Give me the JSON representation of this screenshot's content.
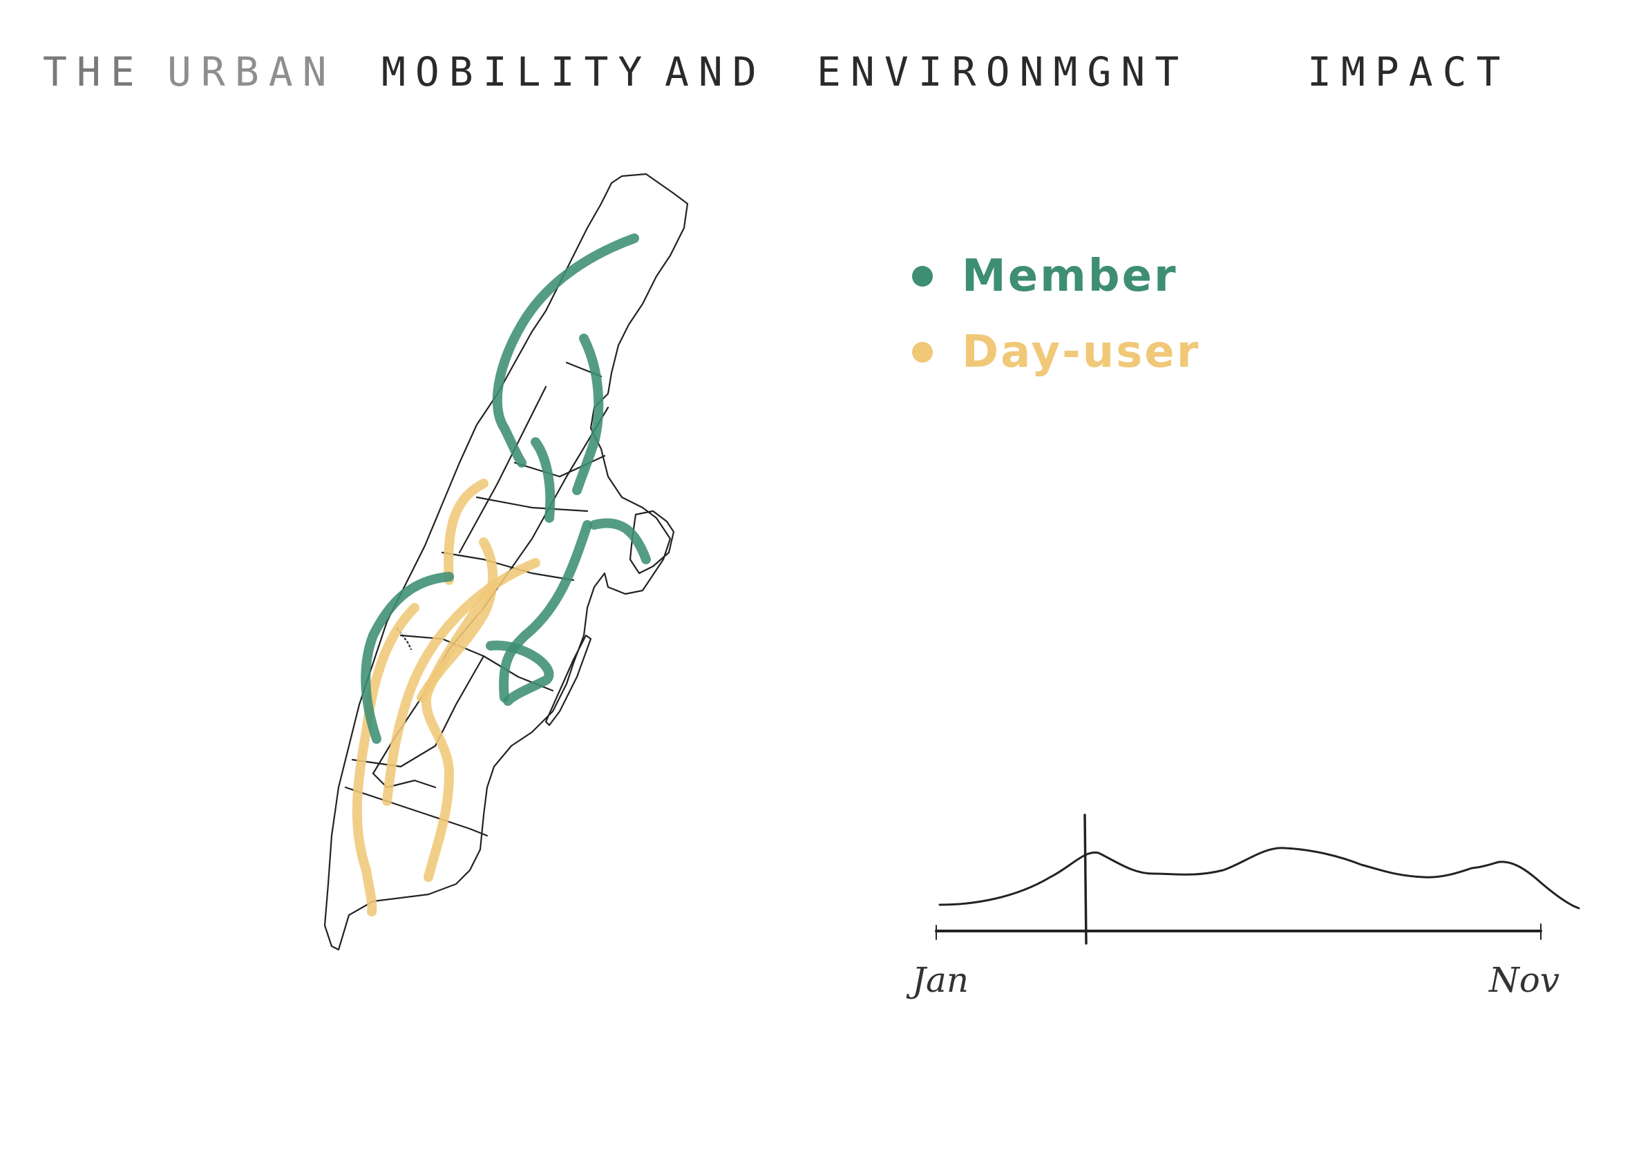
{
  "title": {
    "words": [
      "THE",
      "URBAN",
      "MOBILITY",
      "AND",
      "ENVIRONMGNT",
      "IMPACT"
    ]
  },
  "legend": {
    "items": [
      {
        "label": "Member",
        "color": "#3e8e74"
      },
      {
        "label": "Day-user",
        "color": "#f0c878"
      }
    ]
  },
  "timeline": {
    "start_label": "Jan",
    "end_label": "Nov",
    "marker_position": 0.25
  },
  "colors": {
    "member": "#3e8e74",
    "day_user": "#f0c878",
    "ink": "#222222"
  }
}
